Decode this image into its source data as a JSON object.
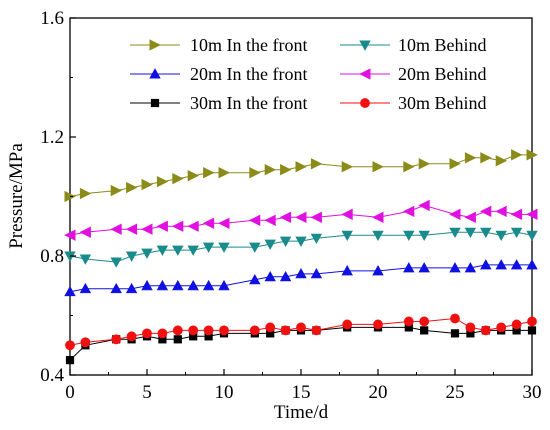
{
  "chart_data": {
    "type": "line",
    "xlabel": "Time/d",
    "ylabel": "Pressure/MPa",
    "xlim": [
      0,
      30
    ],
    "ylim": [
      0.4,
      1.6
    ],
    "x_ticks": [
      0,
      5,
      10,
      15,
      20,
      25,
      30
    ],
    "y_ticks": [
      0.4,
      0.8,
      1.2,
      1.6
    ],
    "y_tick_labels": [
      "0.4",
      "0.8",
      "1.2",
      "1.6"
    ],
    "grid": false,
    "legend_position": "top",
    "series": [
      {
        "name": "10m In the front",
        "marker": "triangle-right",
        "color": "#8B8B1A",
        "x": [
          0,
          1,
          3,
          4,
          5,
          6,
          7,
          8,
          9,
          10,
          12,
          13,
          14,
          15,
          16,
          18,
          20,
          22,
          23,
          25,
          26,
          27,
          28,
          29,
          30
        ],
        "y": [
          1.0,
          1.01,
          1.02,
          1.03,
          1.04,
          1.05,
          1.06,
          1.07,
          1.08,
          1.08,
          1.08,
          1.09,
          1.09,
          1.1,
          1.11,
          1.1,
          1.1,
          1.1,
          1.11,
          1.11,
          1.13,
          1.13,
          1.12,
          1.14,
          1.14
        ]
      },
      {
        "name": "10m Behind",
        "marker": "triangle-down",
        "color": "#1A8B8B",
        "x": [
          0,
          1,
          3,
          4,
          5,
          6,
          7,
          8,
          9,
          10,
          12,
          13,
          14,
          15,
          16,
          18,
          20,
          22,
          23,
          25,
          26,
          27,
          28,
          29,
          30
        ],
        "y": [
          0.8,
          0.79,
          0.78,
          0.8,
          0.81,
          0.82,
          0.82,
          0.82,
          0.83,
          0.83,
          0.83,
          0.84,
          0.85,
          0.85,
          0.86,
          0.87,
          0.87,
          0.87,
          0.87,
          0.88,
          0.88,
          0.88,
          0.87,
          0.88,
          0.87
        ]
      },
      {
        "name": "20m In the front",
        "marker": "triangle-up",
        "color": "#1010E0",
        "x": [
          0,
          1,
          3,
          4,
          5,
          6,
          7,
          8,
          9,
          10,
          12,
          13,
          14,
          15,
          16,
          18,
          20,
          22,
          23,
          25,
          26,
          27,
          28,
          29,
          30
        ],
        "y": [
          0.68,
          0.69,
          0.69,
          0.69,
          0.7,
          0.7,
          0.7,
          0.7,
          0.7,
          0.7,
          0.72,
          0.73,
          0.73,
          0.74,
          0.74,
          0.75,
          0.75,
          0.76,
          0.76,
          0.76,
          0.76,
          0.77,
          0.77,
          0.77,
          0.77
        ]
      },
      {
        "name": "20m Behind",
        "marker": "triangle-left",
        "color": "#E010E0",
        "x": [
          0,
          1,
          3,
          4,
          5,
          6,
          7,
          8,
          9,
          10,
          12,
          13,
          14,
          15,
          16,
          18,
          20,
          22,
          23,
          25,
          26,
          27,
          28,
          29,
          30
        ],
        "y": [
          0.87,
          0.88,
          0.89,
          0.89,
          0.89,
          0.9,
          0.9,
          0.9,
          0.91,
          0.91,
          0.92,
          0.92,
          0.93,
          0.93,
          0.93,
          0.94,
          0.93,
          0.95,
          0.97,
          0.94,
          0.93,
          0.95,
          0.95,
          0.94,
          0.94
        ]
      },
      {
        "name": "30m In the front",
        "marker": "square",
        "color": "#000000",
        "x": [
          0,
          1,
          3,
          4,
          5,
          6,
          7,
          8,
          9,
          10,
          12,
          13,
          14,
          15,
          16,
          18,
          20,
          22,
          23,
          25,
          26,
          27,
          28,
          29,
          30
        ],
        "y": [
          0.45,
          0.5,
          0.52,
          0.52,
          0.53,
          0.52,
          0.52,
          0.53,
          0.53,
          0.54,
          0.54,
          0.54,
          0.55,
          0.55,
          0.55,
          0.56,
          0.56,
          0.56,
          0.55,
          0.54,
          0.54,
          0.55,
          0.55,
          0.55,
          0.55
        ]
      },
      {
        "name": "30m Behind",
        "marker": "circle",
        "color": "#F01010",
        "x": [
          0,
          1,
          3,
          4,
          5,
          6,
          7,
          8,
          9,
          10,
          12,
          13,
          14,
          15,
          16,
          18,
          20,
          22,
          23,
          25,
          26,
          27,
          28,
          29,
          30
        ],
        "y": [
          0.5,
          0.51,
          0.52,
          0.53,
          0.54,
          0.54,
          0.55,
          0.55,
          0.55,
          0.55,
          0.55,
          0.56,
          0.55,
          0.56,
          0.55,
          0.57,
          0.57,
          0.58,
          0.58,
          0.59,
          0.56,
          0.55,
          0.56,
          0.57,
          0.58
        ]
      }
    ]
  }
}
